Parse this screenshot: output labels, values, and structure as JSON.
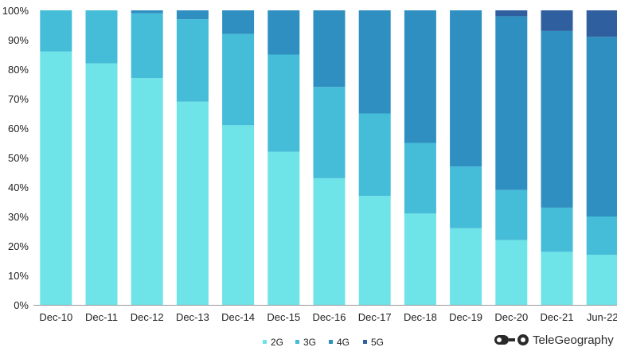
{
  "chart_data": {
    "type": "bar",
    "stacked": true,
    "percent": true,
    "categories": [
      "Dec-10",
      "Dec-11",
      "Dec-12",
      "Dec-13",
      "Dec-14",
      "Dec-15",
      "Dec-16",
      "Dec-17",
      "Dec-18",
      "Dec-19",
      "Dec-20",
      "Dec-21",
      "Jun-22"
    ],
    "series": [
      {
        "name": "2G",
        "color": "#6ee3e8",
        "values": [
          86,
          82,
          77,
          69,
          61,
          52,
          43,
          37,
          31,
          26,
          22,
          18,
          17
        ]
      },
      {
        "name": "3G",
        "color": "#45bcd8",
        "values": [
          14,
          18,
          22,
          28,
          31,
          33,
          31,
          28,
          24,
          21,
          17,
          15,
          13
        ]
      },
      {
        "name": "4G",
        "color": "#2e8fc0",
        "values": [
          0,
          0,
          1,
          3,
          8,
          15,
          26,
          35,
          45,
          53,
          59,
          60,
          61
        ]
      },
      {
        "name": "5G",
        "color": "#2f5f9e",
        "values": [
          0,
          0,
          0,
          0,
          0,
          0,
          0,
          0,
          0,
          0,
          2,
          7,
          9
        ]
      }
    ],
    "yticks": [
      "0%",
      "10%",
      "20%",
      "30%",
      "40%",
      "50%",
      "60%",
      "70%",
      "80%",
      "90%",
      "100%"
    ],
    "ylim": [
      0,
      100
    ],
    "title": "",
    "xlabel": "",
    "ylabel": "",
    "grid": false,
    "legend_position": "bottom-center"
  },
  "brand": {
    "name": "TeleGeography",
    "logo_icon": "telegeography-logo-icon"
  }
}
